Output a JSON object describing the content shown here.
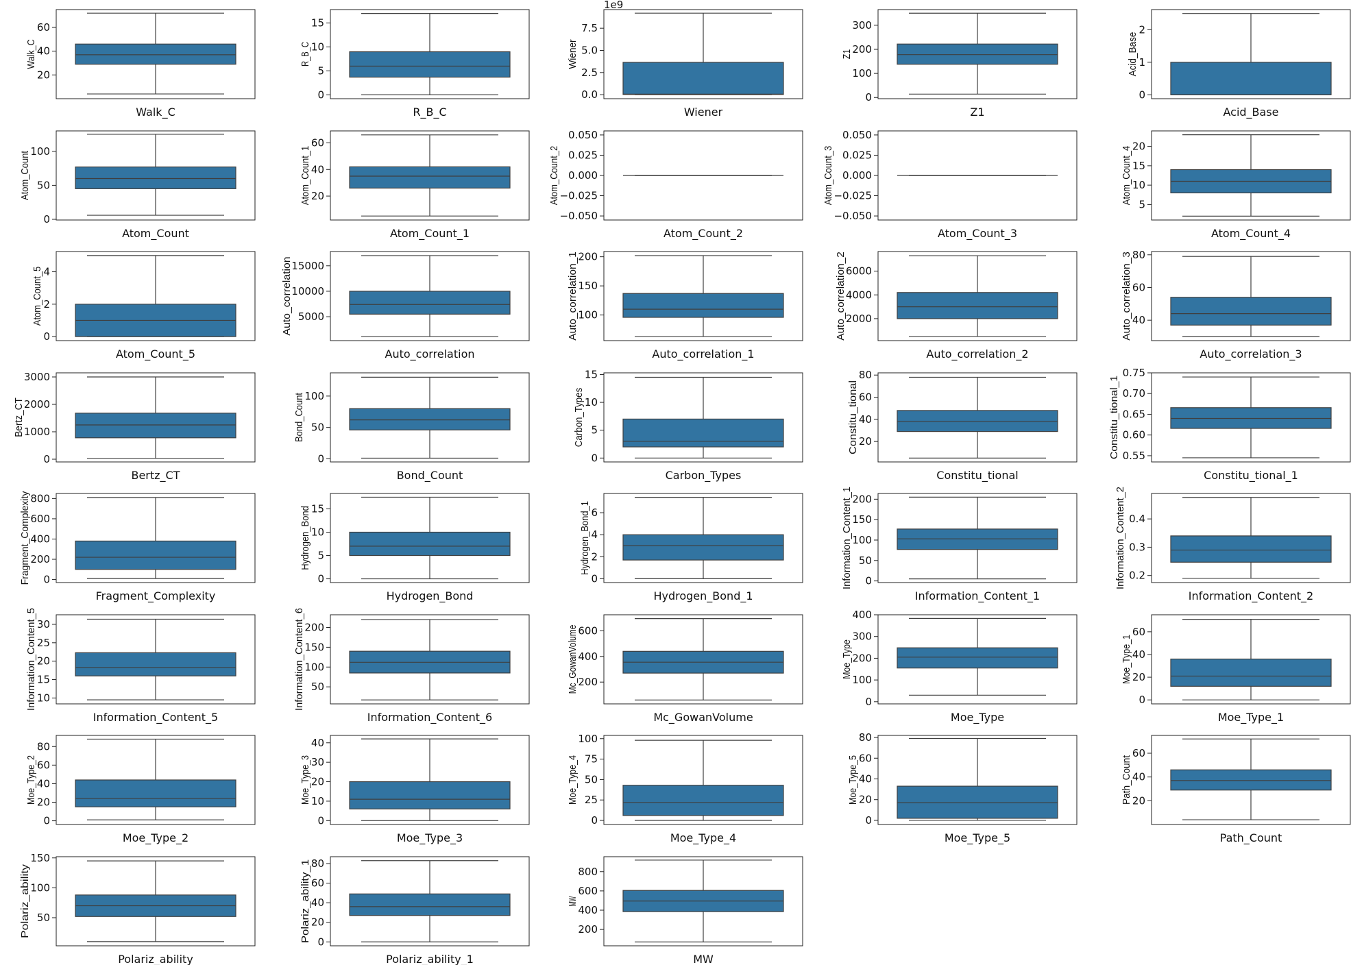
{
  "chart_data": [
    {
      "type": "box",
      "name": "Walk_C",
      "xlabel": "Walk_C",
      "ylabel": "Walk_C",
      "ylim": [
        0,
        75
      ],
      "yticks": [
        20,
        40,
        60
      ],
      "stats": {
        "min": 4,
        "q1": 29,
        "median": 37,
        "q3": 46,
        "max": 72
      }
    },
    {
      "type": "box",
      "name": "R_B_C",
      "xlabel": "R_B_C",
      "ylabel": "R_B_C",
      "ylim": [
        -0.8,
        17.8
      ],
      "yticks": [
        0,
        5,
        10,
        15
      ],
      "stats": {
        "min": 0,
        "q1": 3.7,
        "median": 6,
        "q3": 9,
        "max": 17
      }
    },
    {
      "type": "box",
      "name": "Wiener",
      "xlabel": "Wiener",
      "ylabel": "Wiener",
      "ylim": [
        -0.45,
        9.6
      ],
      "yticks": [
        0.0,
        2.5,
        5.0,
        7.5
      ],
      "tick_format": "1f",
      "offset_text": "1e9",
      "stats": {
        "min": 0,
        "q1": 0.02,
        "median": 0.06,
        "q3": 3.65,
        "max": 9.2
      }
    },
    {
      "type": "box",
      "name": "Z1",
      "xlabel": "Z1",
      "ylabel": "Z1",
      "ylim": [
        -5,
        365
      ],
      "yticks": [
        0,
        100,
        200,
        300
      ],
      "stats": {
        "min": 14,
        "q1": 138,
        "median": 178,
        "q3": 222,
        "max": 350
      }
    },
    {
      "type": "box",
      "name": "Acid_Base",
      "xlabel": "Acid_Base",
      "ylabel": "Acid_Base",
      "ylim": [
        -0.12,
        2.62
      ],
      "yticks": [
        0,
        1,
        2
      ],
      "stats": {
        "min": 0,
        "q1": 0,
        "median": 0,
        "q3": 1,
        "max": 2.5
      }
    },
    {
      "type": "box",
      "name": "Atom_Count",
      "xlabel": "Atom_Count",
      "ylabel": "Atom_Count",
      "ylim": [
        -1,
        130
      ],
      "yticks": [
        0,
        50,
        100
      ],
      "stats": {
        "min": 6,
        "q1": 45,
        "median": 60,
        "q3": 77,
        "max": 125
      }
    },
    {
      "type": "box",
      "name": "Atom_Count_1",
      "xlabel": "Atom_Count_1",
      "ylabel": "Atom_Count_1",
      "ylim": [
        2,
        69
      ],
      "yticks": [
        20,
        40,
        60
      ],
      "stats": {
        "min": 5,
        "q1": 26,
        "median": 35,
        "q3": 42,
        "max": 66
      }
    },
    {
      "type": "box",
      "name": "Atom_Count_2",
      "xlabel": "Atom_Count_2",
      "ylabel": "Atom_Count_2",
      "ylim": [
        -0.055,
        0.055
      ],
      "yticks": [
        -0.05,
        -0.025,
        0.0,
        0.025,
        0.05
      ],
      "tick_format": "3f",
      "stats": {
        "min": 0,
        "q1": 0,
        "median": 0,
        "q3": 0,
        "max": 0
      }
    },
    {
      "type": "box",
      "name": "Atom_Count_3",
      "xlabel": "Atom_Count_3",
      "ylabel": "Atom_Count_3",
      "ylim": [
        -0.055,
        0.055
      ],
      "yticks": [
        -0.05,
        -0.025,
        0.0,
        0.025,
        0.05
      ],
      "tick_format": "3f",
      "stats": {
        "min": 0,
        "q1": 0,
        "median": 0,
        "q3": 0,
        "max": 0
      }
    },
    {
      "type": "box",
      "name": "Atom_Count_4",
      "xlabel": "Atom_Count_4",
      "ylabel": "Atom_Count_4",
      "ylim": [
        1,
        24
      ],
      "yticks": [
        5,
        10,
        15,
        20
      ],
      "stats": {
        "min": 2,
        "q1": 8,
        "median": 11,
        "q3": 14,
        "max": 23
      }
    },
    {
      "type": "box",
      "name": "Atom_Count_5",
      "xlabel": "Atom_Count_5",
      "ylabel": "Atom_Count_5",
      "ylim": [
        -0.25,
        5.25
      ],
      "yticks": [
        0,
        2,
        4
      ],
      "stats": {
        "min": 0,
        "q1": 0,
        "median": 1,
        "q3": 2,
        "max": 5
      }
    },
    {
      "type": "box",
      "name": "Auto_correlation",
      "xlabel": "Auto_correlation",
      "ylabel": "Auto_correlation",
      "ylim": [
        300,
        17800
      ],
      "yticks": [
        5000,
        10000,
        15000
      ],
      "stats": {
        "min": 1100,
        "q1": 5500,
        "median": 7400,
        "q3": 10000,
        "max": 17000
      }
    },
    {
      "type": "box",
      "name": "Auto_correlation_1",
      "xlabel": "Auto_correlation_1",
      "ylabel": "Auto_correlation_1",
      "ylim": [
        56,
        209
      ],
      "yticks": [
        100,
        150,
        200
      ],
      "stats": {
        "min": 63,
        "q1": 96,
        "median": 110,
        "q3": 137,
        "max": 202
      }
    },
    {
      "type": "box",
      "name": "Auto_correlation_2",
      "xlabel": "Auto_correlation_2",
      "ylabel": "Auto_correlation_2",
      "ylim": [
        150,
        7650
      ],
      "yticks": [
        2000,
        4000,
        6000
      ],
      "stats": {
        "min": 500,
        "q1": 2000,
        "median": 3000,
        "q3": 4200,
        "max": 7300
      }
    },
    {
      "type": "box",
      "name": "Auto_correlation_3",
      "xlabel": "Auto_correlation_3",
      "ylabel": "Auto_correlation_3",
      "ylim": [
        27.5,
        82
      ],
      "yticks": [
        40,
        60,
        80
      ],
      "stats": {
        "min": 30,
        "q1": 37,
        "median": 44,
        "q3": 54,
        "max": 79
      }
    },
    {
      "type": "box",
      "name": "Bertz_CT",
      "xlabel": "Bertz_CT",
      "ylabel": "Bertz_CT",
      "ylim": [
        -100,
        3150
      ],
      "yticks": [
        0,
        1000,
        2000,
        3000
      ],
      "stats": {
        "min": 30,
        "q1": 780,
        "median": 1250,
        "q3": 1680,
        "max": 3000
      }
    },
    {
      "type": "box",
      "name": "Bond_Count",
      "xlabel": "Bond_Count",
      "ylabel": "Bond_Count",
      "ylim": [
        -5,
        137
      ],
      "yticks": [
        0,
        50,
        100
      ],
      "stats": {
        "min": 1,
        "q1": 46,
        "median": 62,
        "q3": 80,
        "max": 130
      }
    },
    {
      "type": "box",
      "name": "Carbon_Types",
      "xlabel": "Carbon_Types",
      "ylabel": "Carbon_Types",
      "ylim": [
        -0.7,
        15.3
      ],
      "yticks": [
        0,
        5,
        10,
        15
      ],
      "stats": {
        "min": 0,
        "q1": 2,
        "median": 3,
        "q3": 7,
        "max": 14.5
      }
    },
    {
      "type": "box",
      "name": "Constitu_tional",
      "xlabel": "Constitu_tional",
      "ylabel": "Constitu_tional",
      "ylim": [
        1.5,
        82
      ],
      "yticks": [
        20,
        40,
        60,
        80
      ],
      "stats": {
        "min": 5,
        "q1": 29,
        "median": 38,
        "q3": 48,
        "max": 78
      }
    },
    {
      "type": "box",
      "name": "Constitu_tional_1",
      "xlabel": "Constitu_tional_1",
      "ylabel": "Constitu_tional_1",
      "ylim": [
        0.535,
        0.75
      ],
      "yticks": [
        0.55,
        0.6,
        0.65,
        0.7,
        0.75
      ],
      "tick_format": "2f",
      "stats": {
        "min": 0.545,
        "q1": 0.616,
        "median": 0.64,
        "q3": 0.666,
        "max": 0.74
      }
    },
    {
      "type": "box",
      "name": "Fragment_Complexity",
      "xlabel": "Fragment_Complexity",
      "ylabel": "Fragment_Complexity",
      "ylim": [
        -30,
        850
      ],
      "yticks": [
        0,
        200,
        400,
        600,
        800
      ],
      "stats": {
        "min": 10,
        "q1": 100,
        "median": 220,
        "q3": 380,
        "max": 810
      }
    },
    {
      "type": "box",
      "name": "Hydrogen_Bond",
      "xlabel": "Hydrogen_Bond",
      "ylabel": "Hydrogen_Bond",
      "ylim": [
        -0.8,
        18.3
      ],
      "yticks": [
        0,
        5,
        10,
        15
      ],
      "stats": {
        "min": 0,
        "q1": 5,
        "median": 7,
        "q3": 10,
        "max": 17.5
      }
    },
    {
      "type": "box",
      "name": "Hydrogen_Bond_1",
      "xlabel": "Hydrogen_Bond_1",
      "ylabel": "Hydrogen_Bond_1",
      "ylim": [
        -0.35,
        7.75
      ],
      "yticks": [
        0,
        2,
        4,
        6
      ],
      "stats": {
        "min": 0,
        "q1": 1.7,
        "median": 3,
        "q3": 4,
        "max": 7.4
      }
    },
    {
      "type": "box",
      "name": "Information_Content_1",
      "xlabel": "Information_Content_1",
      "ylabel": "Information_Content_1",
      "ylim": [
        -4,
        214
      ],
      "yticks": [
        0,
        50,
        100,
        150,
        200
      ],
      "stats": {
        "min": 5,
        "q1": 77,
        "median": 103,
        "q3": 127,
        "max": 205
      }
    },
    {
      "type": "box",
      "name": "Information_Content_2",
      "xlabel": "Information_Content_2",
      "ylabel": "Information_Content_2",
      "ylim": [
        0.175,
        0.49
      ],
      "yticks": [
        0.2,
        0.3,
        0.4
      ],
      "tick_format": "1f",
      "stats": {
        "min": 0.19,
        "q1": 0.247,
        "median": 0.29,
        "q3": 0.34,
        "max": 0.476
      }
    },
    {
      "type": "box",
      "name": "Information_Content_5",
      "xlabel": "Information_Content_5",
      "ylabel": "Information_Content_5",
      "ylim": [
        8.4,
        32.6
      ],
      "yticks": [
        10,
        15,
        20,
        25,
        30
      ],
      "stats": {
        "min": 9.5,
        "q1": 16,
        "median": 18.3,
        "q3": 22.3,
        "max": 31.4
      }
    },
    {
      "type": "box",
      "name": "Information_Content_6",
      "xlabel": "Information_Content_6",
      "ylabel": "Information_Content_6",
      "ylim": [
        7,
        232
      ],
      "yticks": [
        50,
        100,
        150,
        200
      ],
      "stats": {
        "min": 17,
        "q1": 85,
        "median": 112,
        "q3": 140,
        "max": 220
      }
    },
    {
      "type": "box",
      "name": "Mc_GowanVolume",
      "xlabel": "Mc_GowanVolume",
      "ylabel": "Mc_GowanVolume",
      "ylim": [
        30,
        725
      ],
      "yticks": [
        200,
        400,
        600
      ],
      "stats": {
        "min": 60,
        "q1": 270,
        "median": 355,
        "q3": 440,
        "max": 695
      }
    },
    {
      "type": "box",
      "name": "Moe_Type",
      "xlabel": "Moe_Type",
      "ylabel": "Moe_Type",
      "ylim": [
        -10,
        400
      ],
      "yticks": [
        0,
        100,
        200,
        300,
        400
      ],
      "stats": {
        "min": 30,
        "q1": 155,
        "median": 205,
        "q3": 248,
        "max": 383
      }
    },
    {
      "type": "box",
      "name": "Moe_Type_1",
      "xlabel": "Moe_Type_1",
      "ylabel": "Moe_Type_1",
      "ylim": [
        -3.5,
        75
      ],
      "yticks": [
        0,
        20,
        40,
        60
      ],
      "stats": {
        "min": 0,
        "q1": 12,
        "median": 21,
        "q3": 36,
        "max": 71
      }
    },
    {
      "type": "box",
      "name": "Moe_Type_2",
      "xlabel": "Moe_Type_2",
      "ylabel": "Moe_Type_2",
      "ylim": [
        -4,
        92
      ],
      "yticks": [
        0,
        20,
        40,
        60,
        80
      ],
      "stats": {
        "min": 1,
        "q1": 15,
        "median": 24,
        "q3": 44,
        "max": 88
      }
    },
    {
      "type": "box",
      "name": "Moe_Type_3",
      "xlabel": "Moe_Type_3",
      "ylabel": "Moe_Type_3",
      "ylim": [
        -2,
        43.8
      ],
      "yticks": [
        0,
        10,
        20,
        30,
        40
      ],
      "stats": {
        "min": 0,
        "q1": 6,
        "median": 11,
        "q3": 20,
        "max": 42
      }
    },
    {
      "type": "box",
      "name": "Moe_Type_4",
      "xlabel": "Moe_Type_4",
      "ylabel": "Moe_Type_4",
      "ylim": [
        -5,
        104
      ],
      "yticks": [
        0,
        25,
        50,
        75,
        100
      ],
      "stats": {
        "min": 0,
        "q1": 6,
        "median": 22,
        "q3": 43,
        "max": 98
      }
    },
    {
      "type": "box",
      "name": "Moe_Type_5",
      "xlabel": "Moe_Type_5",
      "ylabel": "Moe_Type_5",
      "ylim": [
        -4,
        82
      ],
      "yticks": [
        0,
        20,
        40,
        60,
        80
      ],
      "stats": {
        "min": 0,
        "q1": 2,
        "median": 17,
        "q3": 33,
        "max": 79
      }
    },
    {
      "type": "box",
      "name": "Path_Count",
      "xlabel": "Path_Count",
      "ylabel": "Path_Count",
      "ylim": [
        0,
        75
      ],
      "yticks": [
        20,
        40,
        60
      ],
      "stats": {
        "min": 4,
        "q1": 29,
        "median": 37,
        "q3": 46,
        "max": 72
      }
    },
    {
      "type": "box",
      "name": "Polariz_ability",
      "xlabel": "Polariz_ability",
      "ylabel": "Polariz_ability",
      "ylim": [
        3,
        152
      ],
      "yticks": [
        50,
        100,
        150
      ],
      "stats": {
        "min": 10,
        "q1": 52,
        "median": 70,
        "q3": 88,
        "max": 145
      }
    },
    {
      "type": "box",
      "name": "Polariz_ability_1",
      "xlabel": "Polariz_ability_1",
      "ylabel": "Polariz_ability_1",
      "ylim": [
        -4,
        87
      ],
      "yticks": [
        0,
        20,
        40,
        60,
        80
      ],
      "stats": {
        "min": 0,
        "q1": 27,
        "median": 36,
        "q3": 49,
        "max": 83
      }
    },
    {
      "type": "box",
      "name": "MW",
      "xlabel": "MW",
      "ylabel": "MW",
      "ylim": [
        30,
        955
      ],
      "yticks": [
        200,
        400,
        600,
        800
      ],
      "stats": {
        "min": 70,
        "q1": 385,
        "median": 495,
        "q3": 605,
        "max": 920
      }
    }
  ],
  "colors": {
    "box_fill": "#3274a1",
    "line": "#3f3f3f",
    "axes": "#222222"
  }
}
